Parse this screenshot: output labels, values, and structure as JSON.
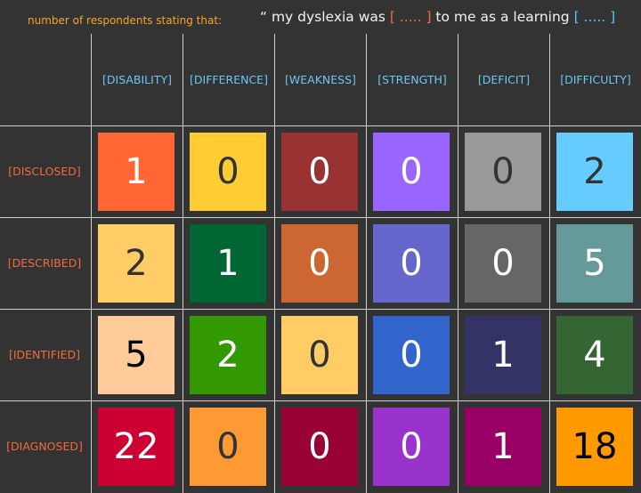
{
  "header": {
    "caption": "number of respondents stating that:",
    "quote_open": "“ my dyslexia was ",
    "bracket1": "[ ..... ]",
    "quote_mid": " to me as a learning ",
    "bracket2": "[ ..... ]"
  },
  "chart_data": {
    "type": "table",
    "columns": [
      "[DISABILITY]",
      "[DIFFERENCE]",
      "[WEAKNESS]",
      "[STRENGTH]",
      "[DEFICIT]",
      "[DIFFICULTY]"
    ],
    "rows": [
      "[DISCLOSED]",
      "[DESCRIBED]",
      "[IDENTIFIED]",
      "[DIAGNOSED]"
    ],
    "values": [
      [
        1,
        0,
        0,
        0,
        0,
        2
      ],
      [
        2,
        1,
        0,
        0,
        0,
        5
      ],
      [
        5,
        2,
        0,
        0,
        1,
        4
      ],
      [
        22,
        0,
        0,
        0,
        1,
        18
      ]
    ],
    "cell_colors": [
      [
        "#ff6633",
        "#ffcc33",
        "#993333",
        "#9966ff",
        "#999999",
        "#66ccff"
      ],
      [
        "#ffcc66",
        "#006633",
        "#cc6633",
        "#6666cc",
        "#666666",
        "#669999"
      ],
      [
        "#ffcc99",
        "#339900",
        "#ffcc66",
        "#3366cc",
        "#333366",
        "#336633"
      ],
      [
        "#cc0033",
        "#ff9933",
        "#990033",
        "#9933cc",
        "#990066",
        "#ff9900"
      ]
    ],
    "text_colors": [
      [
        "#ffffff",
        "#333333",
        "#ffffff",
        "#ffffff",
        "#333333",
        "#333333"
      ],
      [
        "#333333",
        "#ffffff",
        "#ffffff",
        "#ffffff",
        "#ffffff",
        "#ffffff"
      ],
      [
        "#000000",
        "#ffffff",
        "#333333",
        "#ffffff",
        "#ffffff",
        "#ffffff"
      ],
      [
        "#ffffff",
        "#333333",
        "#ffffff",
        "#ffffff",
        "#ffffff",
        "#000000"
      ]
    ]
  }
}
